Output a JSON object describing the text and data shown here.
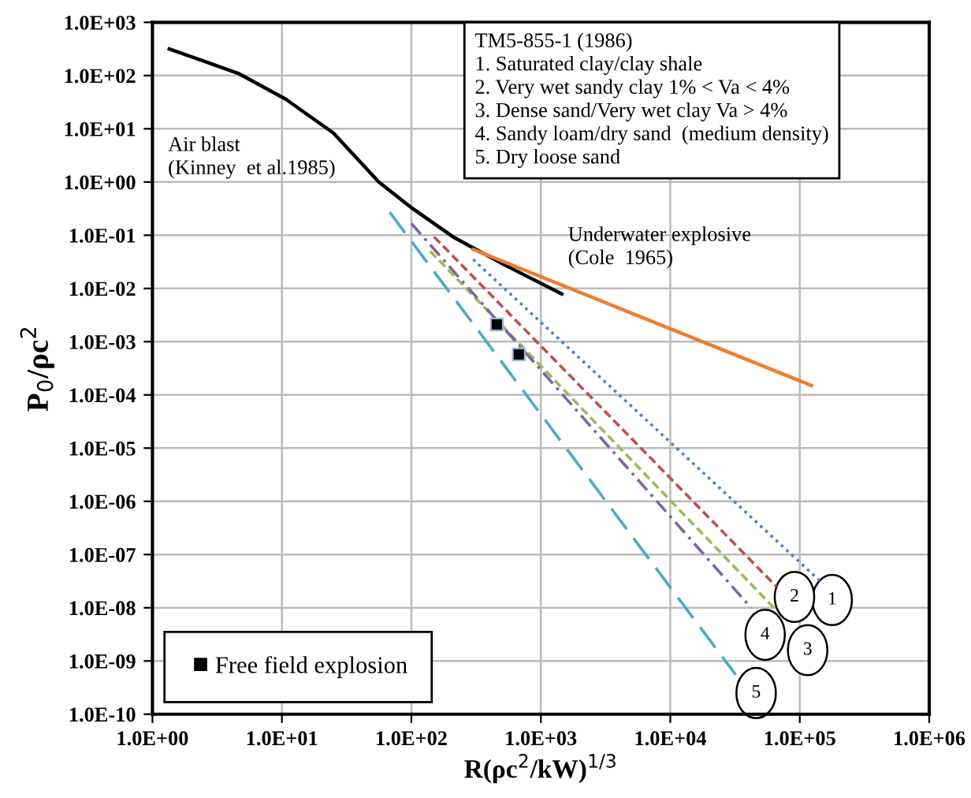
{
  "chart_data": {
    "type": "line",
    "xlabel": "R(ρc$^{2}$/kW)$^{1/3}$",
    "ylabel": "P$_{0}$/ρc$^{2}$",
    "log": "xy",
    "grid": true,
    "legend": "bottom left",
    "xlim": [
      1,
      1000000
    ],
    "ylim": [
      1e-10,
      1000
    ],
    "xticks": [
      {
        "value": 1,
        "label": "1.0E+00"
      },
      {
        "value": 10,
        "label": "1.0E+01"
      },
      {
        "value": 100,
        "label": "1.0E+02"
      },
      {
        "value": 1000,
        "label": "1.0E+03"
      },
      {
        "value": 10000,
        "label": "1.0E+04"
      },
      {
        "value": 100000,
        "label": "1.0E+05"
      },
      {
        "value": 1000000,
        "label": "1.0E+06"
      }
    ],
    "yticks": [
      {
        "value": 1e-10,
        "label": "1.0E-10"
      },
      {
        "value": 1e-09,
        "label": "1.0E-09"
      },
      {
        "value": 1e-08,
        "label": "1.0E-08"
      },
      {
        "value": 1e-07,
        "label": "1.0E-07"
      },
      {
        "value": 1e-06,
        "label": "1.0E-06"
      },
      {
        "value": 1e-05,
        "label": "1.0E-05"
      },
      {
        "value": 0.0001,
        "label": "1.0E-04"
      },
      {
        "value": 0.001,
        "label": "1.0E-03"
      },
      {
        "value": 0.01,
        "label": "1.0E-02"
      },
      {
        "value": 0.1,
        "label": "1.0E-01"
      },
      {
        "value": 1,
        "label": "1.0E+00"
      },
      {
        "value": 10,
        "label": "1.0E+01"
      },
      {
        "value": 100,
        "label": "1.0E+02"
      },
      {
        "value": 1000,
        "label": "1.0E+03"
      }
    ],
    "series": [
      {
        "color": "#000000",
        "line_style": "solid",
        "marker": "none",
        "x": [
          1.35,
          4.6,
          10.7,
          25,
          56,
          100,
          210,
          520,
          1450
        ],
        "values": [
          316,
          110,
          36,
          8.3,
          1.0,
          0.33,
          0.093,
          0.028,
          0.0079
        ]
      },
      {
        "color": "#ed7d31",
        "line_style": "solid",
        "marker": "none",
        "x": [
          300,
          123000
        ],
        "values": [
          0.054,
          0.00015
        ]
      },
      {
        "color": "#4a7fd4",
        "line_style": "dotted",
        "marker": "none",
        "x": [
          300,
          145000
        ],
        "values": [
          0.035,
          3.1e-08
        ]
      },
      {
        "color": "#c0504d",
        "line_style": "dashed",
        "marker": "none",
        "x": [
          150,
          66000
        ],
        "values": [
          0.093,
          2.5e-08
        ]
      },
      {
        "color": "#9bbb59",
        "line_style": "dashed",
        "marker": "none",
        "x": [
          140,
          63000
        ],
        "values": [
          0.05,
          1e-08
        ]
      },
      {
        "color": "#8064a2",
        "line_style": "dashdot",
        "marker": "none",
        "x": [
          100,
          42000
        ],
        "values": [
          0.166,
          1e-08
        ]
      },
      {
        "color": "#4bacc6",
        "line_style": "longdash",
        "marker": "none",
        "x": [
          68,
          32000
        ],
        "values": [
          0.27,
          5.5e-10
        ]
      },
      {
        "type": "scatter",
        "name": "Free field explosion",
        "color": "#000000",
        "marker": "square",
        "x": [
          457,
          676
        ],
        "values": [
          0.0021,
          0.000575
        ]
      }
    ],
    "annotations": [
      "TM5-855-1 (1986)\n1. Saturated clay/clay shale\n2. Very wet sandy clay 1% < Va < 4%\n3. Dense sand/Very wet clay Va > 4%\n4. Sandy loam/dry sand  (medium density)\n5. Dry loose sand",
      "Air blast\n(Kinney  et al.1985)",
      "Underwater explosive\n(Cole  1965)",
      {
        "text": "1",
        "x": 178000,
        "y": 1.4e-08
      },
      {
        "text": "2",
        "x": 91000,
        "y": 1.6e-08
      },
      {
        "text": "3",
        "x": 115000,
        "y": 1.6e-09
      },
      {
        "text": "4",
        "x": 54000,
        "y": 3.1e-09
      },
      {
        "text": "5",
        "x": 46000,
        "y": 2.5e-10
      }
    ]
  }
}
